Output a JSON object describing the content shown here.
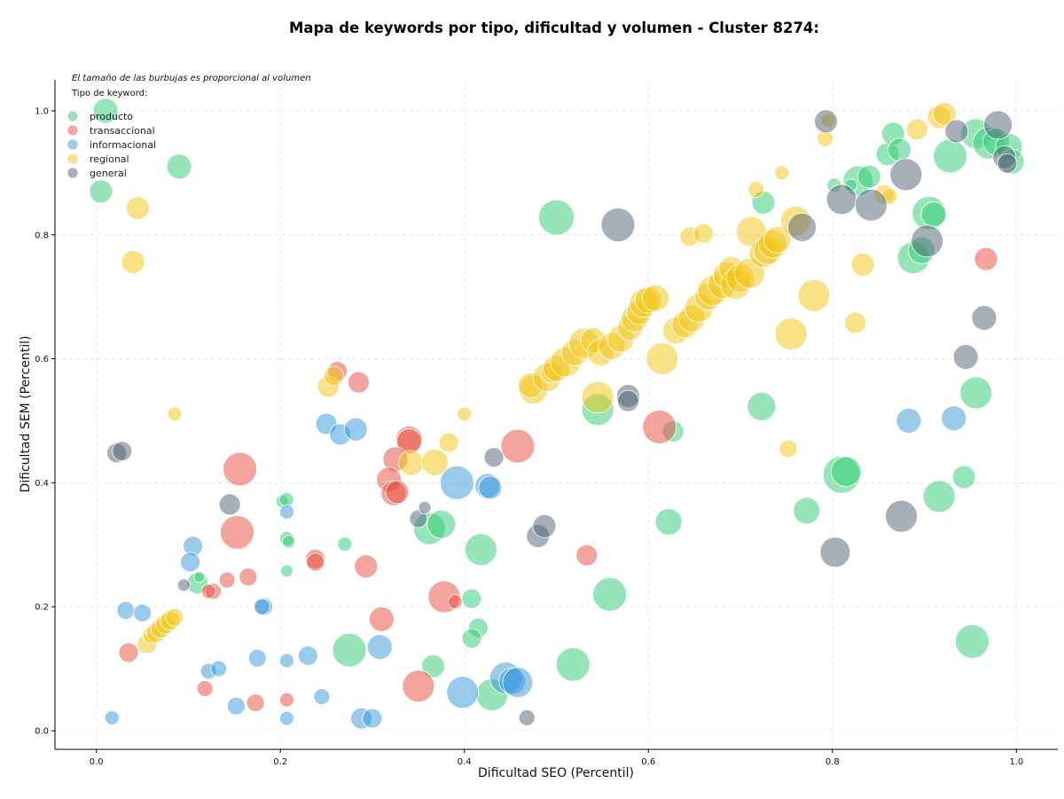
{
  "chart_data": {
    "type": "scatter",
    "title": "Mapa de keywords por tipo, dificultad y volumen - Cluster 8274:",
    "xlabel": "Dificultad SEO (Percentil)",
    "ylabel": "Dificultad SEM (Percentil)",
    "xlim": [
      -0.045,
      1.045
    ],
    "ylim": [
      -0.03,
      1.05
    ],
    "x_ticks": [
      "0.0",
      "0.2",
      "0.4",
      "0.6",
      "0.8",
      "1.0"
    ],
    "y_ticks": [
      "0.0",
      "0.2",
      "0.4",
      "0.6",
      "0.8",
      "1.0"
    ],
    "grid": true,
    "note": "El tamaño de las burbujas es proporcional al volumen",
    "legend": {
      "title": "Tipo de keyword:",
      "placement": "top-left"
    },
    "series": [
      {
        "name": "producto",
        "color": "#2ecc71",
        "points": [
          [
            0.01,
            1.0,
            14
          ],
          [
            0.005,
            0.87,
            13
          ],
          [
            0.09,
            0.91,
            14
          ],
          [
            0.5,
            0.828,
            20
          ],
          [
            0.545,
            0.518,
            18
          ],
          [
            0.627,
            0.483,
            12
          ],
          [
            0.725,
            0.852,
            13
          ],
          [
            0.723,
            0.523,
            16
          ],
          [
            0.622,
            0.337,
            15
          ],
          [
            0.362,
            0.326,
            18
          ],
          [
            0.375,
            0.333,
            16
          ],
          [
            0.418,
            0.292,
            18
          ],
          [
            0.408,
            0.213,
            11
          ],
          [
            0.415,
            0.166,
            11
          ],
          [
            0.408,
            0.149,
            11
          ],
          [
            0.366,
            0.104,
            13
          ],
          [
            0.275,
            0.13,
            19
          ],
          [
            0.43,
            0.058,
            18
          ],
          [
            0.518,
            0.107,
            19
          ],
          [
            0.558,
            0.22,
            19
          ],
          [
            0.772,
            0.355,
            15
          ],
          [
            0.81,
            0.413,
            21
          ],
          [
            0.815,
            0.418,
            17
          ],
          [
            0.916,
            0.378,
            18
          ],
          [
            0.943,
            0.409,
            13
          ],
          [
            0.956,
            0.545,
            18
          ],
          [
            0.952,
            0.144,
            19
          ],
          [
            0.828,
            0.887,
            17
          ],
          [
            0.84,
            0.894,
            13
          ],
          [
            0.86,
            0.93,
            13
          ],
          [
            0.866,
            0.963,
            13
          ],
          [
            0.873,
            0.937,
            13
          ],
          [
            0.888,
            0.763,
            18
          ],
          [
            0.897,
            0.775,
            15
          ],
          [
            0.905,
            0.835,
            19
          ],
          [
            0.91,
            0.833,
            14
          ],
          [
            0.928,
            0.927,
            19
          ],
          [
            0.956,
            0.963,
            17
          ],
          [
            0.97,
            0.948,
            18
          ],
          [
            0.978,
            0.95,
            15
          ],
          [
            0.992,
            0.942,
            15
          ],
          [
            0.995,
            0.918,
            14
          ],
          [
            0.202,
            0.37,
            7
          ],
          [
            0.207,
            0.373,
            8
          ],
          [
            0.207,
            0.31,
            8
          ],
          [
            0.209,
            0.305,
            7
          ],
          [
            0.207,
            0.258,
            7
          ],
          [
            0.27,
            0.301,
            8
          ],
          [
            0.11,
            0.238,
            12
          ],
          [
            0.112,
            0.248,
            6
          ],
          [
            0.802,
            0.88,
            8
          ],
          [
            0.82,
            0.88,
            7
          ]
        ]
      },
      {
        "name": "transaccional",
        "color": "#e74c3c",
        "points": [
          [
            0.156,
            0.422,
            19
          ],
          [
            0.153,
            0.32,
            19
          ],
          [
            0.165,
            0.248,
            10
          ],
          [
            0.142,
            0.243,
            9
          ],
          [
            0.127,
            0.225,
            9
          ],
          [
            0.122,
            0.225,
            8
          ],
          [
            0.035,
            0.126,
            11
          ],
          [
            0.118,
            0.068,
            9
          ],
          [
            0.173,
            0.045,
            10
          ],
          [
            0.207,
            0.05,
            8
          ],
          [
            0.238,
            0.277,
            11
          ],
          [
            0.238,
            0.272,
            10
          ],
          [
            0.293,
            0.265,
            13
          ],
          [
            0.31,
            0.18,
            14
          ],
          [
            0.35,
            0.072,
            18
          ],
          [
            0.34,
            0.47,
            15
          ],
          [
            0.34,
            0.467,
            14
          ],
          [
            0.325,
            0.438,
            14
          ],
          [
            0.318,
            0.405,
            14
          ],
          [
            0.323,
            0.383,
            14
          ],
          [
            0.327,
            0.385,
            13
          ],
          [
            0.378,
            0.216,
            18
          ],
          [
            0.39,
            0.208,
            8
          ],
          [
            0.458,
            0.459,
            19
          ],
          [
            0.612,
            0.49,
            19
          ],
          [
            0.533,
            0.283,
            12
          ],
          [
            0.967,
            0.761,
            13
          ],
          [
            0.262,
            0.58,
            11
          ],
          [
            0.285,
            0.562,
            12
          ]
        ]
      },
      {
        "name": "informacional",
        "color": "#3498db",
        "points": [
          [
            0.017,
            0.021,
            8
          ],
          [
            0.032,
            0.194,
            10
          ],
          [
            0.05,
            0.19,
            10
          ],
          [
            0.105,
            0.298,
            11
          ],
          [
            0.102,
            0.272,
            11
          ],
          [
            0.182,
            0.2,
            10
          ],
          [
            0.18,
            0.2,
            9
          ],
          [
            0.122,
            0.096,
            9
          ],
          [
            0.133,
            0.1,
            9
          ],
          [
            0.175,
            0.117,
            10
          ],
          [
            0.152,
            0.04,
            10
          ],
          [
            0.207,
            0.353,
            8
          ],
          [
            0.207,
            0.113,
            8
          ],
          [
            0.207,
            0.02,
            8
          ],
          [
            0.23,
            0.121,
            11
          ],
          [
            0.245,
            0.055,
            9
          ],
          [
            0.25,
            0.495,
            12
          ],
          [
            0.265,
            0.478,
            12
          ],
          [
            0.282,
            0.486,
            13
          ],
          [
            0.288,
            0.02,
            12
          ],
          [
            0.3,
            0.02,
            11
          ],
          [
            0.308,
            0.135,
            14
          ],
          [
            0.392,
            0.4,
            19
          ],
          [
            0.398,
            0.062,
            18
          ],
          [
            0.425,
            0.395,
            14
          ],
          [
            0.428,
            0.392,
            13
          ],
          [
            0.445,
            0.085,
            18
          ],
          [
            0.452,
            0.08,
            15
          ],
          [
            0.458,
            0.078,
            17
          ],
          [
            0.883,
            0.5,
            14
          ],
          [
            0.932,
            0.504,
            14
          ]
        ]
      },
      {
        "name": "regional",
        "color": "#f1c40f",
        "points": [
          [
            0.045,
            0.843,
            13
          ],
          [
            0.04,
            0.756,
            13
          ],
          [
            0.085,
            0.511,
            8
          ],
          [
            0.055,
            0.14,
            11
          ],
          [
            0.06,
            0.155,
            10
          ],
          [
            0.065,
            0.158,
            11
          ],
          [
            0.07,
            0.165,
            11
          ],
          [
            0.075,
            0.172,
            11
          ],
          [
            0.08,
            0.178,
            11
          ],
          [
            0.085,
            0.183,
            10
          ],
          [
            0.252,
            0.555,
            12
          ],
          [
            0.258,
            0.572,
            11
          ],
          [
            0.342,
            0.432,
            14
          ],
          [
            0.383,
            0.465,
            11
          ],
          [
            0.368,
            0.433,
            15
          ],
          [
            0.4,
            0.511,
            8
          ],
          [
            0.475,
            0.55,
            16
          ],
          [
            0.472,
            0.557,
            14
          ],
          [
            0.49,
            0.57,
            16
          ],
          [
            0.495,
            0.578,
            12
          ],
          [
            0.5,
            0.585,
            15
          ],
          [
            0.51,
            0.595,
            17
          ],
          [
            0.52,
            0.61,
            15
          ],
          [
            0.53,
            0.625,
            17
          ],
          [
            0.54,
            0.63,
            14
          ],
          [
            0.545,
            0.538,
            18
          ],
          [
            0.548,
            0.61,
            15
          ],
          [
            0.56,
            0.62,
            15
          ],
          [
            0.57,
            0.632,
            15
          ],
          [
            0.58,
            0.65,
            14
          ],
          [
            0.585,
            0.665,
            15
          ],
          [
            0.59,
            0.675,
            14
          ],
          [
            0.595,
            0.69,
            16
          ],
          [
            0.6,
            0.695,
            15
          ],
          [
            0.608,
            0.698,
            15
          ],
          [
            0.615,
            0.6,
            18
          ],
          [
            0.63,
            0.645,
            15
          ],
          [
            0.64,
            0.655,
            15
          ],
          [
            0.647,
            0.665,
            15
          ],
          [
            0.655,
            0.682,
            16
          ],
          [
            0.665,
            0.7,
            15
          ],
          [
            0.67,
            0.71,
            17
          ],
          [
            0.68,
            0.72,
            16
          ],
          [
            0.685,
            0.735,
            15
          ],
          [
            0.69,
            0.745,
            14
          ],
          [
            0.695,
            0.72,
            17
          ],
          [
            0.7,
            0.73,
            16
          ],
          [
            0.71,
            0.738,
            17
          ],
          [
            0.712,
            0.805,
            17
          ],
          [
            0.725,
            0.77,
            16
          ],
          [
            0.73,
            0.775,
            16
          ],
          [
            0.735,
            0.785,
            16
          ],
          [
            0.74,
            0.792,
            15
          ],
          [
            0.755,
            0.64,
            18
          ],
          [
            0.76,
            0.822,
            17
          ],
          [
            0.78,
            0.702,
            18
          ],
          [
            0.645,
            0.797,
            11
          ],
          [
            0.66,
            0.802,
            11
          ],
          [
            0.717,
            0.873,
            9
          ],
          [
            0.745,
            0.9,
            8
          ],
          [
            0.752,
            0.455,
            10
          ],
          [
            0.792,
            0.955,
            9
          ],
          [
            0.795,
            0.985,
            8
          ],
          [
            0.825,
            0.658,
            12
          ],
          [
            0.833,
            0.752,
            13
          ],
          [
            0.856,
            0.865,
            11
          ],
          [
            0.862,
            0.862,
            9
          ],
          [
            0.892,
            0.97,
            12
          ],
          [
            0.916,
            0.99,
            13
          ],
          [
            0.922,
            0.995,
            13
          ]
        ]
      },
      {
        "name": "general",
        "color": "#4f6173",
        "points": [
          [
            0.022,
            0.448,
            11
          ],
          [
            0.028,
            0.451,
            11
          ],
          [
            0.095,
            0.235,
            7
          ],
          [
            0.145,
            0.365,
            12
          ],
          [
            0.35,
            0.342,
            10
          ],
          [
            0.357,
            0.36,
            7
          ],
          [
            0.432,
            0.441,
            11
          ],
          [
            0.48,
            0.314,
            13
          ],
          [
            0.487,
            0.33,
            13
          ],
          [
            0.468,
            0.021,
            9
          ],
          [
            0.567,
            0.816,
            19
          ],
          [
            0.578,
            0.54,
            13
          ],
          [
            0.578,
            0.532,
            12
          ],
          [
            0.767,
            0.812,
            16
          ],
          [
            0.793,
            0.983,
            13
          ],
          [
            0.803,
            0.288,
            17
          ],
          [
            0.81,
            0.857,
            17
          ],
          [
            0.842,
            0.848,
            18
          ],
          [
            0.875,
            0.346,
            18
          ],
          [
            0.88,
            0.897,
            18
          ],
          [
            0.903,
            0.79,
            18
          ],
          [
            0.935,
            0.967,
            13
          ],
          [
            0.945,
            0.603,
            14
          ],
          [
            0.965,
            0.666,
            14
          ],
          [
            0.98,
            0.977,
            16
          ],
          [
            0.987,
            0.925,
            13
          ],
          [
            0.99,
            0.915,
            11
          ]
        ]
      }
    ]
  }
}
